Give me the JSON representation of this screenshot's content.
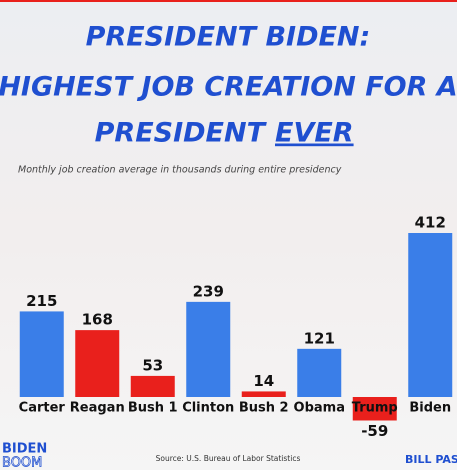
{
  "chart_data": {
    "type": "bar",
    "title": [
      "PRESIDENT BIDEN:",
      "HIGHEST JOB CREATION FOR A",
      "PRESIDENT",
      "EVER"
    ],
    "subtitle": "Monthly job creation average in thousands during entire presidency",
    "categories": [
      "Carter",
      "Reagan",
      "Bush 1",
      "Clinton",
      "Bush 2",
      "Obama",
      "Trump",
      "Biden"
    ],
    "values": [
      215,
      168,
      53,
      239,
      14,
      121,
      -59,
      412
    ],
    "colors": [
      "#3a7ee8",
      "#e9201c",
      "#e9201c",
      "#3a7ee8",
      "#e9201c",
      "#3a7ee8",
      "#e9201c",
      "#3a7ee8"
    ],
    "source": "Source: U.S. Bureau of Labor Statistics",
    "branding": [
      "BIDEN",
      "BOOM",
      "BILL PASCR"
    ]
  }
}
